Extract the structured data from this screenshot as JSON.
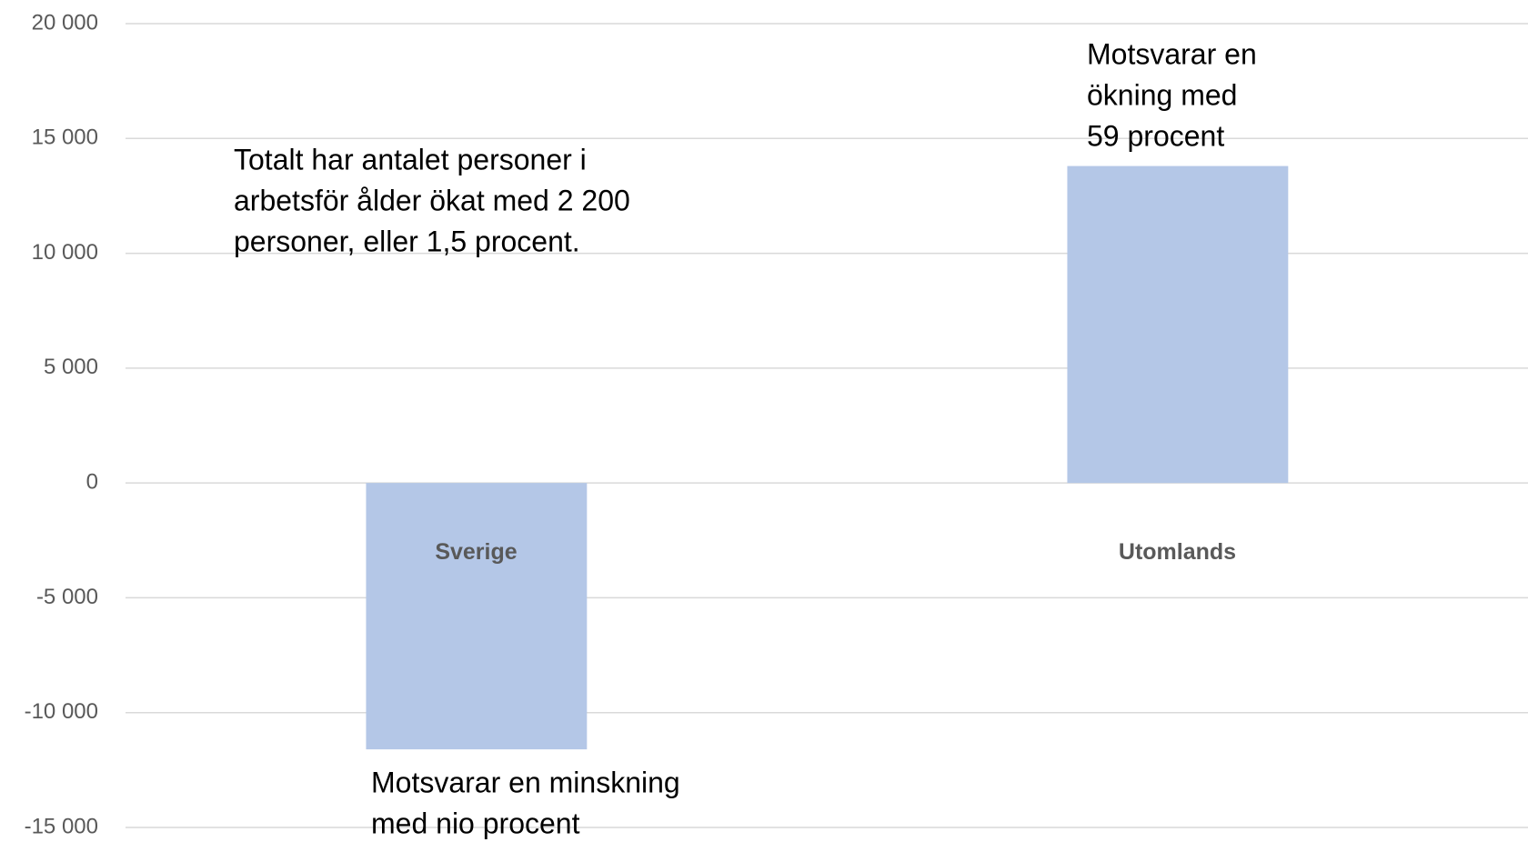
{
  "chart_data": {
    "type": "bar",
    "categories": [
      "Sverige",
      "Utomlands"
    ],
    "values": [
      -11600,
      13800
    ],
    "color": "#b4c7e7",
    "ylim": [
      -15000,
      20000
    ],
    "yticks": [
      {
        "value": -15000,
        "label": "-15 000"
      },
      {
        "value": -10000,
        "label": "-10 000"
      },
      {
        "value": -5000,
        "label": "-5 000"
      },
      0,
      {
        "value": 5000,
        "label": "5 000"
      },
      {
        "value": 10000,
        "label": "10 000"
      },
      {
        "value": 15000,
        "label": "15 000"
      },
      {
        "value": 20000,
        "label": "20 000"
      }
    ],
    "grid": true,
    "annotations": [
      {
        "lines": [
          "Totalt har antalet personer i",
          "arbetsför ålder ökat med 2 200",
          "personer, eller 1,5 procent."
        ]
      },
      {
        "lines": [
          "Motsvarar en",
          "ökning med",
          "59 procent"
        ]
      },
      {
        "lines": [
          "Motsvarar en minskning",
          "med nio procent"
        ]
      }
    ]
  }
}
